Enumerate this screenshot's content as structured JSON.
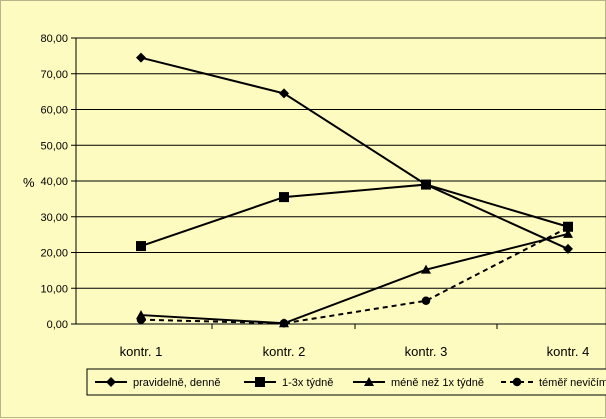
{
  "chart_data": {
    "type": "line",
    "title": "",
    "xlabel": "",
    "ylabel": "%",
    "categories": [
      "kontr. 1",
      "kontr. 2",
      "kontr. 3",
      "kontr. 4"
    ],
    "ylim": [
      0,
      80
    ],
    "yticks": [
      "0,00",
      "10,00",
      "20,00",
      "30,00",
      "40,00",
      "50,00",
      "60,00",
      "70,00",
      "80,00"
    ],
    "grid": true,
    "legend_position": "bottom",
    "series": [
      {
        "name": "pravidelně, denně",
        "values": [
          74.5,
          64.5,
          39.0,
          21.0
        ],
        "marker": "diamond",
        "dash": "solid"
      },
      {
        "name": "1-3x týdně",
        "values": [
          21.8,
          35.5,
          39.0,
          27.2
        ],
        "marker": "square",
        "dash": "solid"
      },
      {
        "name": "méně než 1x týdně",
        "values": [
          2.5,
          0.2,
          15.2,
          25.2
        ],
        "marker": "triangle",
        "dash": "solid"
      },
      {
        "name": "téměř nevičím",
        "values": [
          1.2,
          0.2,
          6.5,
          27.0
        ],
        "marker": "circle",
        "dash": "dashed"
      }
    ]
  }
}
